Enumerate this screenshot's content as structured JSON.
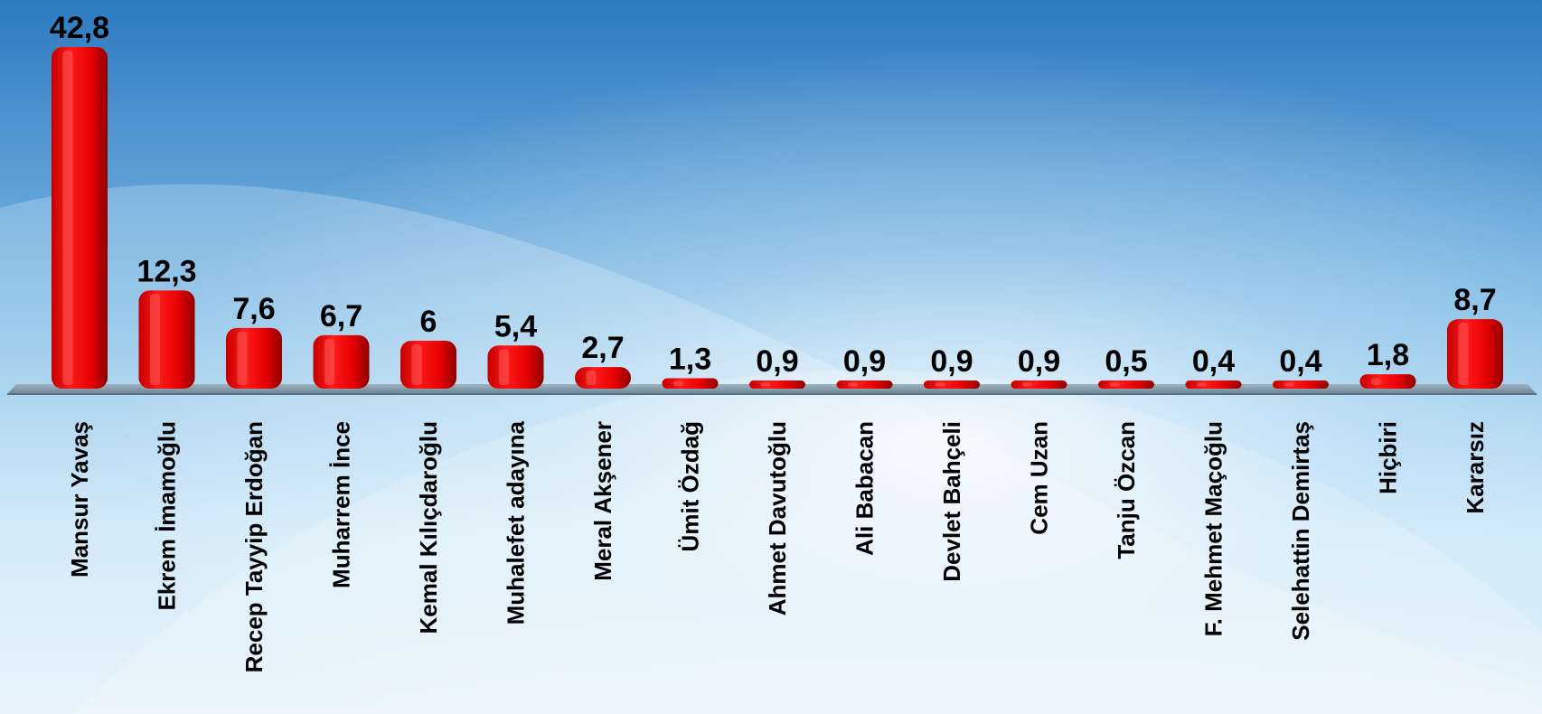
{
  "chart_data": {
    "type": "bar",
    "categories": [
      "Mansur Yavaş",
      "Ekrem İmamoğlu",
      "Recep Tayyip Erdoğan",
      "Muharrem İnce",
      "Kemal Kılıçdaroğlu",
      "Muhalefet adayına",
      "Meral Akşener",
      "Ümit Özdağ",
      "Ahmet Davutoğlu",
      "Ali Babacan",
      "Devlet Bahçeli",
      "Cem Uzan",
      "Tanju Özcan",
      "F. Mehmet Maçoğlu",
      "Selehattin Demirtaş",
      "Hiçbiri",
      "Kararsız"
    ],
    "values": [
      42.8,
      12.3,
      7.6,
      6.7,
      6,
      5.4,
      2.7,
      1.3,
      0.9,
      0.9,
      0.9,
      0.9,
      0.5,
      0.4,
      0.4,
      1.8,
      8.7
    ],
    "value_labels": [
      "42,8",
      "12,3",
      "7,6",
      "6,7",
      "6",
      "5,4",
      "2,7",
      "1,3",
      "0,9",
      "0,9",
      "0,9",
      "0,9",
      "0,5",
      "0,4",
      "0,4",
      "1,8",
      "8,7"
    ],
    "title": "",
    "xlabel": "",
    "ylabel": "",
    "ylim": [
      0,
      42.8
    ],
    "grid": false,
    "legend": "none",
    "colors": {
      "bar": "#ee0000",
      "bar_dark": "#8e0000",
      "bar_light": "#ff5a5a",
      "background_top": "#2f7cc0",
      "background_mid": "#9fd0ee",
      "floor": "#7c96a6"
    }
  }
}
